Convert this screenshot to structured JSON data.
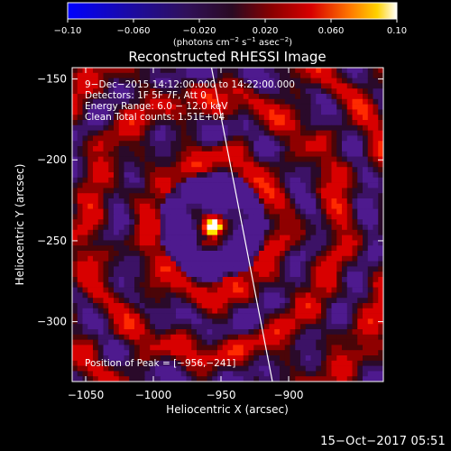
{
  "chart_data": {
    "type": "heatmap",
    "title": "Reconstructed RHESSI Image",
    "xlabel": "Heliocentric X (arcsec)",
    "ylabel": "Heliocentric Y (arcsec)",
    "xlim": [
      -1060,
      -830
    ],
    "ylim": [
      -337,
      -143
    ],
    "x_ticks": [
      -1050,
      -1000,
      -950,
      -900
    ],
    "x_tick_labels": [
      "−1050",
      "−1000",
      "−950",
      "−900"
    ],
    "y_ticks": [
      -150,
      -200,
      -250,
      -300
    ],
    "y_tick_labels": [
      "−150",
      "−200",
      "−250",
      "−300"
    ],
    "colorbar": {
      "range": [
        -0.1,
        0.1
      ],
      "ticks": [
        -0.1,
        -0.06,
        -0.02,
        0.02,
        0.06,
        0.1
      ],
      "tick_labels": [
        "−0.10",
        "−0.060",
        "−0.020",
        "0.020",
        "0.060",
        "0.10"
      ],
      "units_prefix": "(photons cm",
      "units_exp1": "−2",
      "units_mid1": " s",
      "units_exp2": "−1",
      "units_mid2": " asec",
      "units_exp3": "−2",
      "units_suffix": ")"
    },
    "annotations": [
      " 9−Dec−2015 14:12:00.000 to 14:22:00.000",
      "Detectors: 1F 5F 7F, Att 0",
      "Energy Range: 6.0 − 12.0 keV",
      "Clean    Total counts: 1.51E+04"
    ],
    "peak_label": "Position of Peak = [−956,−241]",
    "peak": {
      "x": -956,
      "y": -241
    },
    "limb_line": {
      "x1": -957,
      "y1": -143,
      "x2": -912,
      "y2": -337
    },
    "colors": {
      "background": "#000000",
      "limb": "#ffffff"
    }
  },
  "footer": {
    "timestamp": "15−Oct−2017 05:51"
  }
}
